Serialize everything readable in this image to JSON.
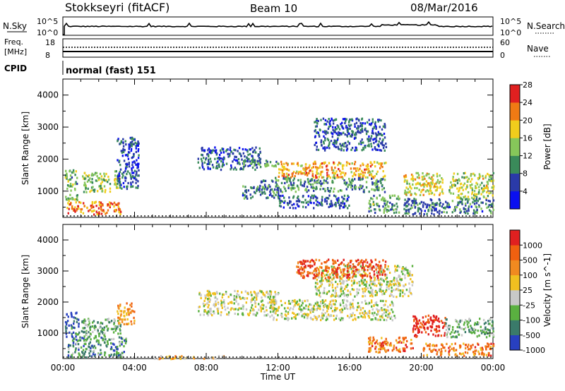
{
  "header": {
    "radar": "Stokkseyri (fitACF)",
    "beam": "Beam 10",
    "date": "08/Mar/2016"
  },
  "nsky_panel": {
    "left_label": "N.Sky",
    "left_ticks": [
      "10^5",
      "10^0"
    ],
    "right_ticks": [
      "10^5",
      "10^0"
    ],
    "right_label": "N.Search"
  },
  "freq_panel": {
    "left_label_1": "Freq.",
    "left_label_2": "[MHz]",
    "left_ticks": [
      "18",
      "8"
    ],
    "right_ticks": [
      "60",
      "0"
    ],
    "right_label": "Nave"
  },
  "cpid": {
    "label": "CPID",
    "program": "normal (fast) 151"
  },
  "chart_data": [
    {
      "type": "heatmap",
      "name": "Power",
      "ylabel": "Slant Range [km]",
      "xlabel": "Time UT",
      "ylim": [
        180,
        4500
      ],
      "yticks": [
        1000,
        2000,
        3000,
        4000
      ],
      "xlim": [
        0,
        24
      ],
      "colorbar_label": "Power [dB]",
      "colorbar_ticks": [
        "4",
        "8",
        "12",
        "16",
        "20",
        "24",
        "28"
      ],
      "colorbar_colors": [
        "#0a10f0",
        "#2a3aa8",
        "#3a8a5a",
        "#86c65a",
        "#f0cc1c",
        "#f07a14",
        "#e02020"
      ],
      "blobs": [
        {
          "t": 0.2,
          "t2": 3.2,
          "r": 300,
          "r2": 700,
          "v": 0.78
        },
        {
          "t": 0.1,
          "t2": 0.8,
          "r": 700,
          "r2": 1700,
          "v": 0.45
        },
        {
          "t": 1.0,
          "t2": 2.6,
          "r": 1000,
          "r2": 1600,
          "v": 0.5
        },
        {
          "t": 2.8,
          "t2": 3.2,
          "r": 1100,
          "r2": 1700,
          "v": 0.55
        },
        {
          "t": 3.0,
          "t2": 4.2,
          "r": 1100,
          "r2": 2700,
          "v": 0.2
        },
        {
          "t": 7.5,
          "t2": 11.0,
          "r": 1700,
          "r2": 2400,
          "v": 0.25
        },
        {
          "t": 10.0,
          "t2": 12.0,
          "r": 1800,
          "r2": 2000,
          "v": 0.4
        },
        {
          "t": 12.0,
          "t2": 18.0,
          "r": 1450,
          "r2": 1950,
          "v": 0.72
        },
        {
          "t": 11.0,
          "t2": 18.0,
          "r": 1000,
          "r2": 1450,
          "v": 0.35
        },
        {
          "t": 14.0,
          "t2": 18.0,
          "r": 2300,
          "r2": 3300,
          "v": 0.25
        },
        {
          "t": 17.0,
          "t2": 18.8,
          "r": 350,
          "r2": 900,
          "v": 0.4
        },
        {
          "t": 19.0,
          "t2": 21.2,
          "r": 900,
          "r2": 1600,
          "v": 0.6
        },
        {
          "t": 21.5,
          "t2": 24.0,
          "r": 800,
          "r2": 1600,
          "v": 0.55
        },
        {
          "t": 19.0,
          "t2": 24.0,
          "r": 300,
          "r2": 800,
          "v": 0.3
        },
        {
          "t": 10.0,
          "t2": 12.0,
          "r": 800,
          "r2": 1200,
          "v": 0.3
        },
        {
          "t": 12.0,
          "t2": 16.0,
          "r": 500,
          "r2": 900,
          "v": 0.25
        }
      ]
    },
    {
      "type": "heatmap",
      "name": "Velocity",
      "ylabel": "Slant Range [km]",
      "xlabel": "Time UT",
      "ylim": [
        180,
        4500
      ],
      "yticks": [
        1000,
        2000,
        3000,
        4000
      ],
      "xlim": [
        0,
        24
      ],
      "xticks": [
        "00:00",
        "04:00",
        "08:00",
        "12:00",
        "16:00",
        "20:00",
        "00:00"
      ],
      "colorbar_label": "Velocity [m s^-1]",
      "colorbar_ticks": [
        "1000",
        "500",
        "100",
        "25",
        "-25",
        "-100",
        "-500",
        "-1000"
      ],
      "colorbar_colors": [
        "#2840c0",
        "#3a7a6a",
        "#5ab040",
        "#c8c8c8",
        "#f0c020",
        "#f08a20",
        "#f06010",
        "#e02020"
      ],
      "blobs": [
        {
          "t": 0.2,
          "t2": 3.5,
          "r": 250,
          "r2": 900,
          "v": 0.25
        },
        {
          "t": 0.1,
          "t2": 0.9,
          "r": 900,
          "r2": 1700,
          "v": 0.1
        },
        {
          "t": 1.0,
          "t2": 3.2,
          "r": 900,
          "r2": 1500,
          "v": 0.3
        },
        {
          "t": 3.0,
          "t2": 4.0,
          "r": 1300,
          "r2": 2000,
          "v": 0.7
        },
        {
          "t": 7.5,
          "t2": 12.0,
          "r": 1600,
          "r2": 2400,
          "v": 0.45
        },
        {
          "t": 11.5,
          "t2": 18.5,
          "r": 1450,
          "r2": 2100,
          "v": 0.45
        },
        {
          "t": 14.0,
          "t2": 19.5,
          "r": 2200,
          "r2": 3200,
          "v": 0.45
        },
        {
          "t": 17.0,
          "t2": 19.5,
          "r": 400,
          "r2": 900,
          "v": 0.75
        },
        {
          "t": 19.5,
          "t2": 21.3,
          "r": 900,
          "r2": 1600,
          "v": 0.95
        },
        {
          "t": 21.3,
          "t2": 24.0,
          "r": 900,
          "r2": 1500,
          "v": 0.3
        },
        {
          "t": 20.0,
          "t2": 24.0,
          "r": 300,
          "r2": 700,
          "v": 0.75
        },
        {
          "t": 5.0,
          "t2": 9.0,
          "r": 200,
          "r2": 300,
          "v": 0.62
        },
        {
          "t": 13.0,
          "t2": 18.0,
          "r": 2800,
          "r2": 3400,
          "v": 0.85
        }
      ]
    }
  ]
}
